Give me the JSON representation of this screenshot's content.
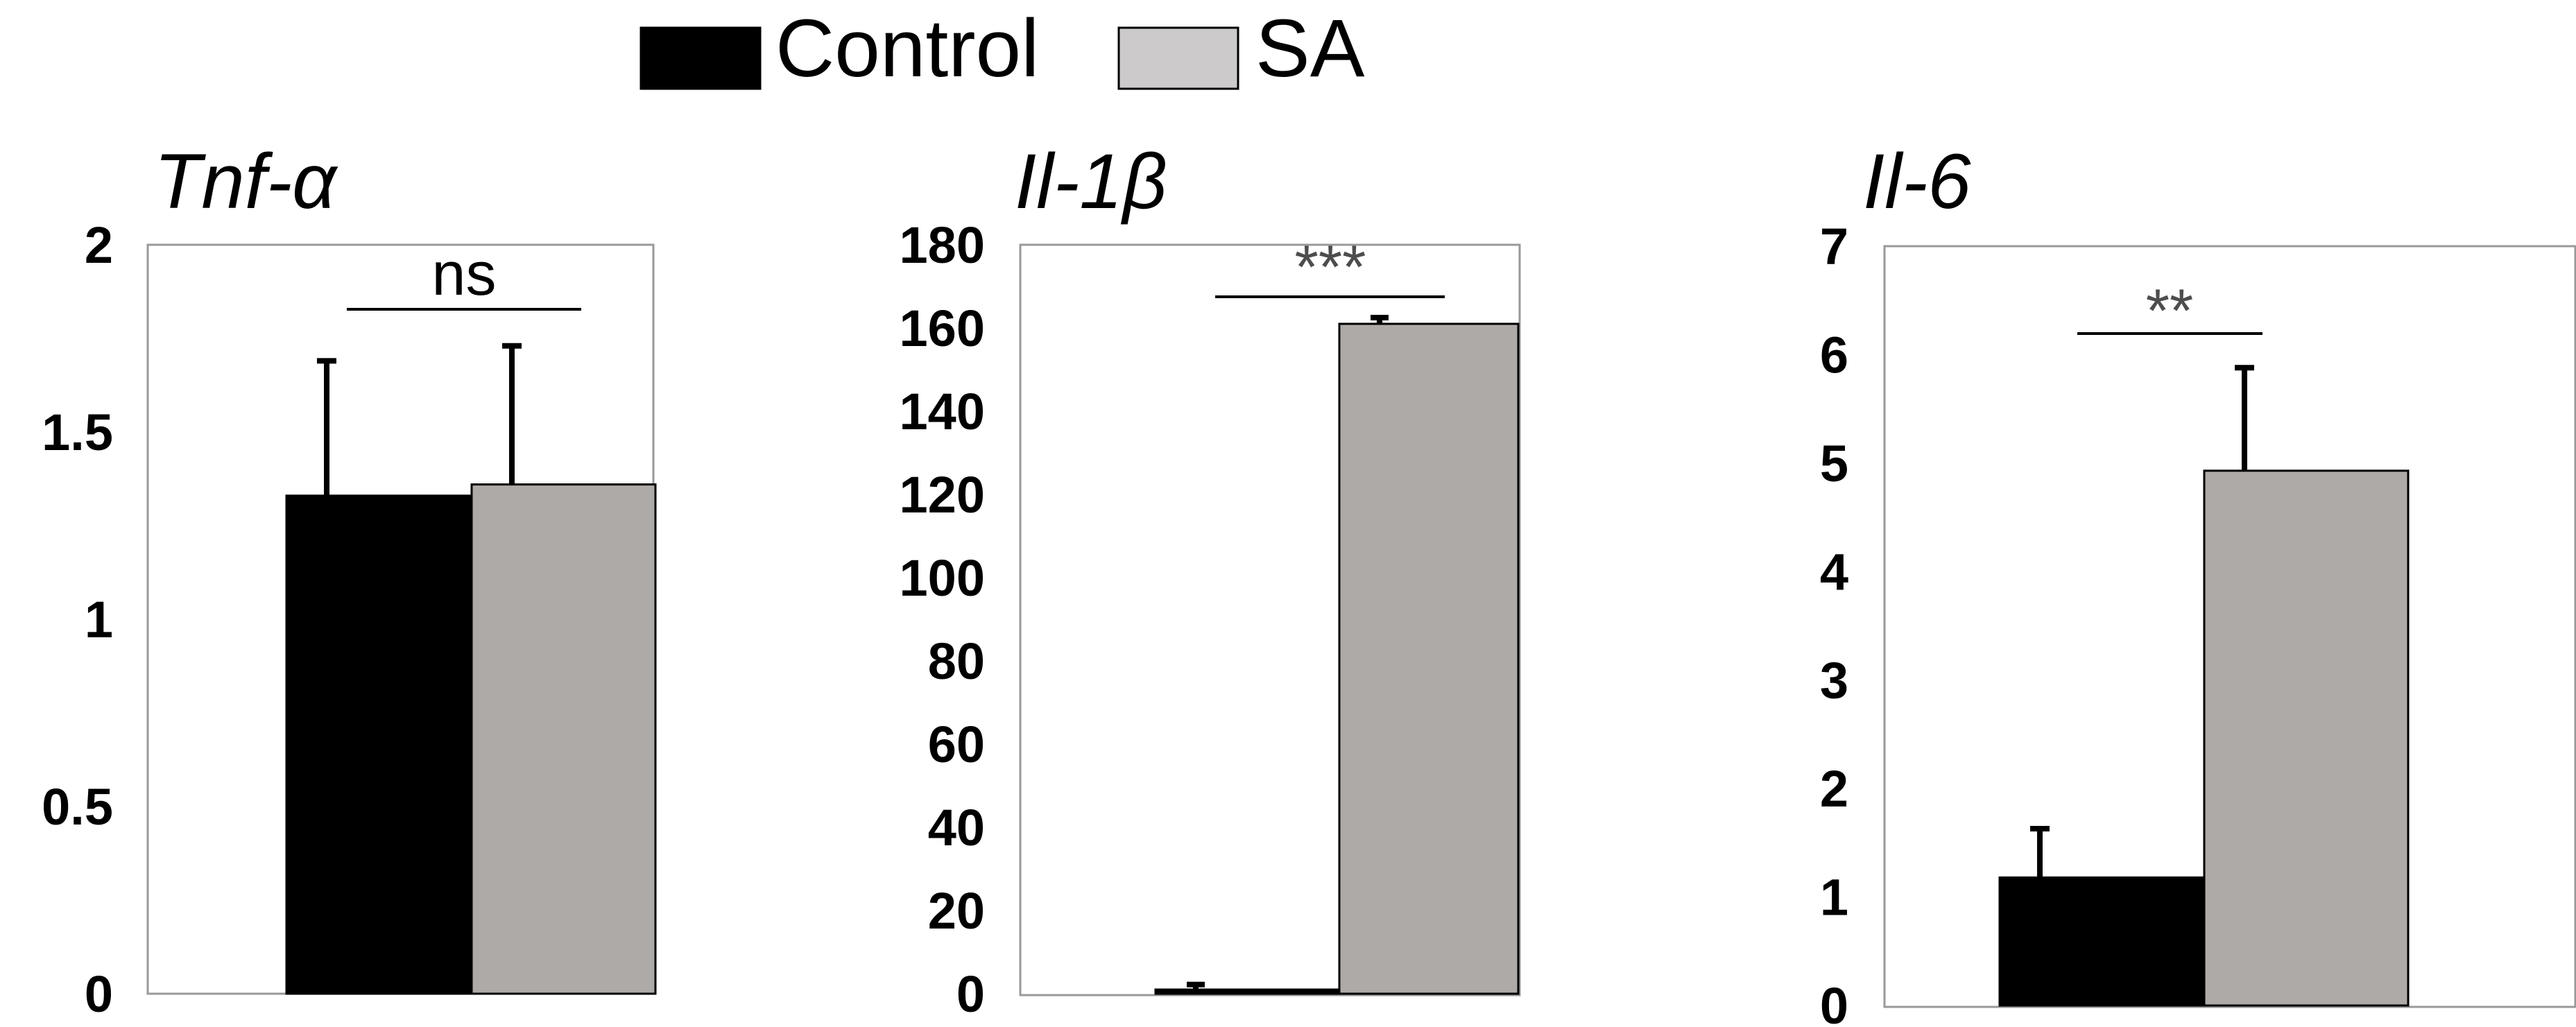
{
  "legend": {
    "placement": "top-center",
    "items": [
      {
        "label": "Control",
        "color": "#000000"
      },
      {
        "label": "SA",
        "color": "#cccacb"
      }
    ]
  },
  "colors": {
    "control": "#000000",
    "sa": "#aeaaa8",
    "axis": "#7a7a7a",
    "frame": "#999999"
  },
  "chart_data": [
    {
      "type": "bar",
      "title": "Tnf-α",
      "categories": [
        "Control",
        "SA"
      ],
      "values": [
        1.33,
        1.36
      ],
      "errors": [
        0.36,
        0.37
      ],
      "ylim": [
        0,
        2
      ],
      "yticks": [
        0,
        0.5,
        1,
        1.5,
        2
      ],
      "ytick_labels": [
        "0",
        "0.5",
        "1",
        "1.5",
        "2"
      ],
      "significance": "ns",
      "xlabel": "",
      "ylabel": ""
    },
    {
      "type": "bar",
      "title": "Il-1β",
      "categories": [
        "Control",
        "SA"
      ],
      "values": [
        1,
        161
      ],
      "errors": [
        1.2,
        1.5
      ],
      "ylim": [
        0,
        180
      ],
      "yticks": [
        0,
        20,
        40,
        60,
        80,
        100,
        120,
        140,
        160,
        180
      ],
      "ytick_labels": [
        "0",
        "20",
        "40",
        "60",
        "80",
        "100",
        "120",
        "140",
        "160",
        "180"
      ],
      "significance": "***",
      "xlabel": "",
      "ylabel": ""
    },
    {
      "type": "bar",
      "title": "Il-6",
      "categories": [
        "Control",
        "SA"
      ],
      "values": [
        1.18,
        4.93
      ],
      "errors": [
        0.45,
        0.95
      ],
      "ylim": [
        0,
        7
      ],
      "yticks": [
        0,
        1,
        2,
        3,
        4,
        5,
        6,
        7
      ],
      "ytick_labels": [
        "0",
        "1",
        "2",
        "3",
        "4",
        "5",
        "6",
        "7"
      ],
      "significance": "**",
      "xlabel": "",
      "ylabel": ""
    }
  ]
}
